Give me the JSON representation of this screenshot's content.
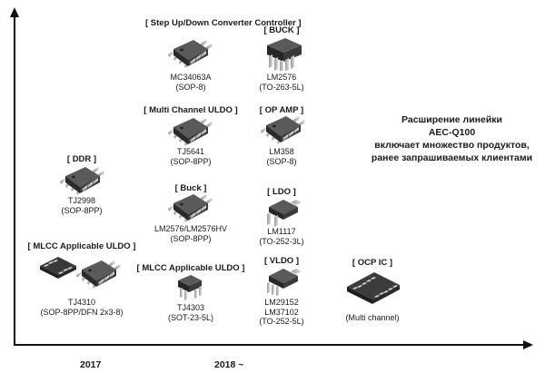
{
  "headline": {
    "line1": "Расширение линейки",
    "line2": "AEC-Q100",
    "line3": "включает множество продуктов,",
    "line4": "ранее запрашиваемых клиентами"
  },
  "axis": {
    "year_2017": "2017",
    "year_2018": "2018 ~"
  },
  "products": [
    {
      "id": "mc34063a",
      "category": "[ Step Up/Down Converter Controller ]",
      "part": "MC34063A",
      "package": "(SOP-8)",
      "icon": "soic-8-chip-icon"
    },
    {
      "id": "lm2576-buck",
      "category": "[ BUCK ]",
      "part": "LM2576",
      "package": "(TO-263-5L)",
      "icon": "to-263-chip-icon"
    },
    {
      "id": "tj5641",
      "category": "[ Multi Channel ULDO ]",
      "part": "TJ5641",
      "package": "(SOP-8PP)",
      "icon": "soic-8-chip-icon"
    },
    {
      "id": "lm358",
      "category": "[ OP AMP ]",
      "part": "LM358",
      "package": "(SOP-8)",
      "icon": "soic-8-chip-icon"
    },
    {
      "id": "tj2998",
      "category": "[ DDR ]",
      "part": "TJ2998",
      "package": "(SOP-8PP)",
      "icon": "soic-8-chip-icon"
    },
    {
      "id": "lm2576hv",
      "category": "[ Buck ]",
      "part": "LM2576/LM2576HV",
      "package": "(SOP-8PP)",
      "icon": "soic-8-chip-icon"
    },
    {
      "id": "lm1117",
      "category": "[ LDO ]",
      "part": "LM1117",
      "package": "(TO-252-3L)",
      "icon": "to-252-chip-icon"
    },
    {
      "id": "tj4310",
      "category": "[ MLCC Applicable ULDO ]",
      "part": "TJ4310",
      "package": "(SOP-8PP/DFN 2x3-8)",
      "icon": "dfn-and-soic-chip-icon"
    },
    {
      "id": "tj4303",
      "category": "[ MLCC Applicable ULDO ]",
      "part": "TJ4303",
      "package": "(SOT-23-5L)",
      "icon": "sot-23-chip-icon"
    },
    {
      "id": "lm29152",
      "category": "[ VLDO ]",
      "part": "LM29152",
      "part2": "LM37102",
      "package": "(TO-252-5L)",
      "icon": "to-252-chip-icon"
    },
    {
      "id": "ocp-ic",
      "category": "[ OCP IC ]",
      "part": "(Multi channel)",
      "icon": "dfn-chip-icon"
    }
  ]
}
